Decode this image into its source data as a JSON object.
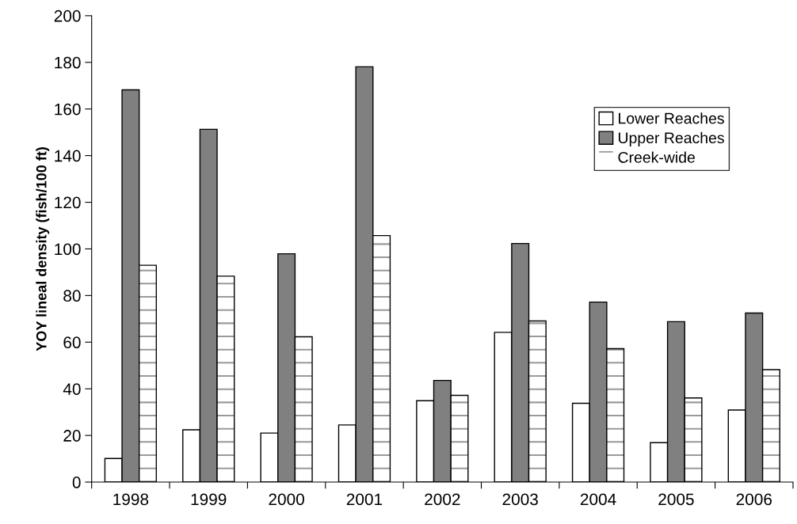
{
  "chart_data": {
    "type": "bar",
    "categories": [
      "1998",
      "1999",
      "2000",
      "2001",
      "2002",
      "2003",
      "2004",
      "2005",
      "2006"
    ],
    "ylabel": "YOY lineal density (fish/100 ft)",
    "series": [
      {
        "name": "Lower Reaches",
        "color": "#ffffff",
        "values": [
          10.1,
          22.4,
          21.0,
          24.5,
          34.9,
          64.2,
          33.8,
          16.9,
          30.9
        ]
      },
      {
        "name": "Upper Reaches",
        "color": "#808080",
        "values": [
          168.2,
          151.3,
          97.9,
          178.1,
          43.6,
          102.3,
          77.2,
          68.8,
          72.5
        ]
      },
      {
        "name": "Creek-wide",
        "color": "#ffffff",
        "values": [
          93.0,
          88.3,
          62.3,
          105.7,
          37.2,
          69.1,
          57.2,
          36.1,
          48.2
        ]
      }
    ],
    "ylim": [
      0,
      200
    ],
    "yticks": [
      0,
      20,
      40,
      60,
      80,
      100,
      120,
      140,
      160,
      180,
      200
    ],
    "grid": false,
    "legend": "top right"
  }
}
